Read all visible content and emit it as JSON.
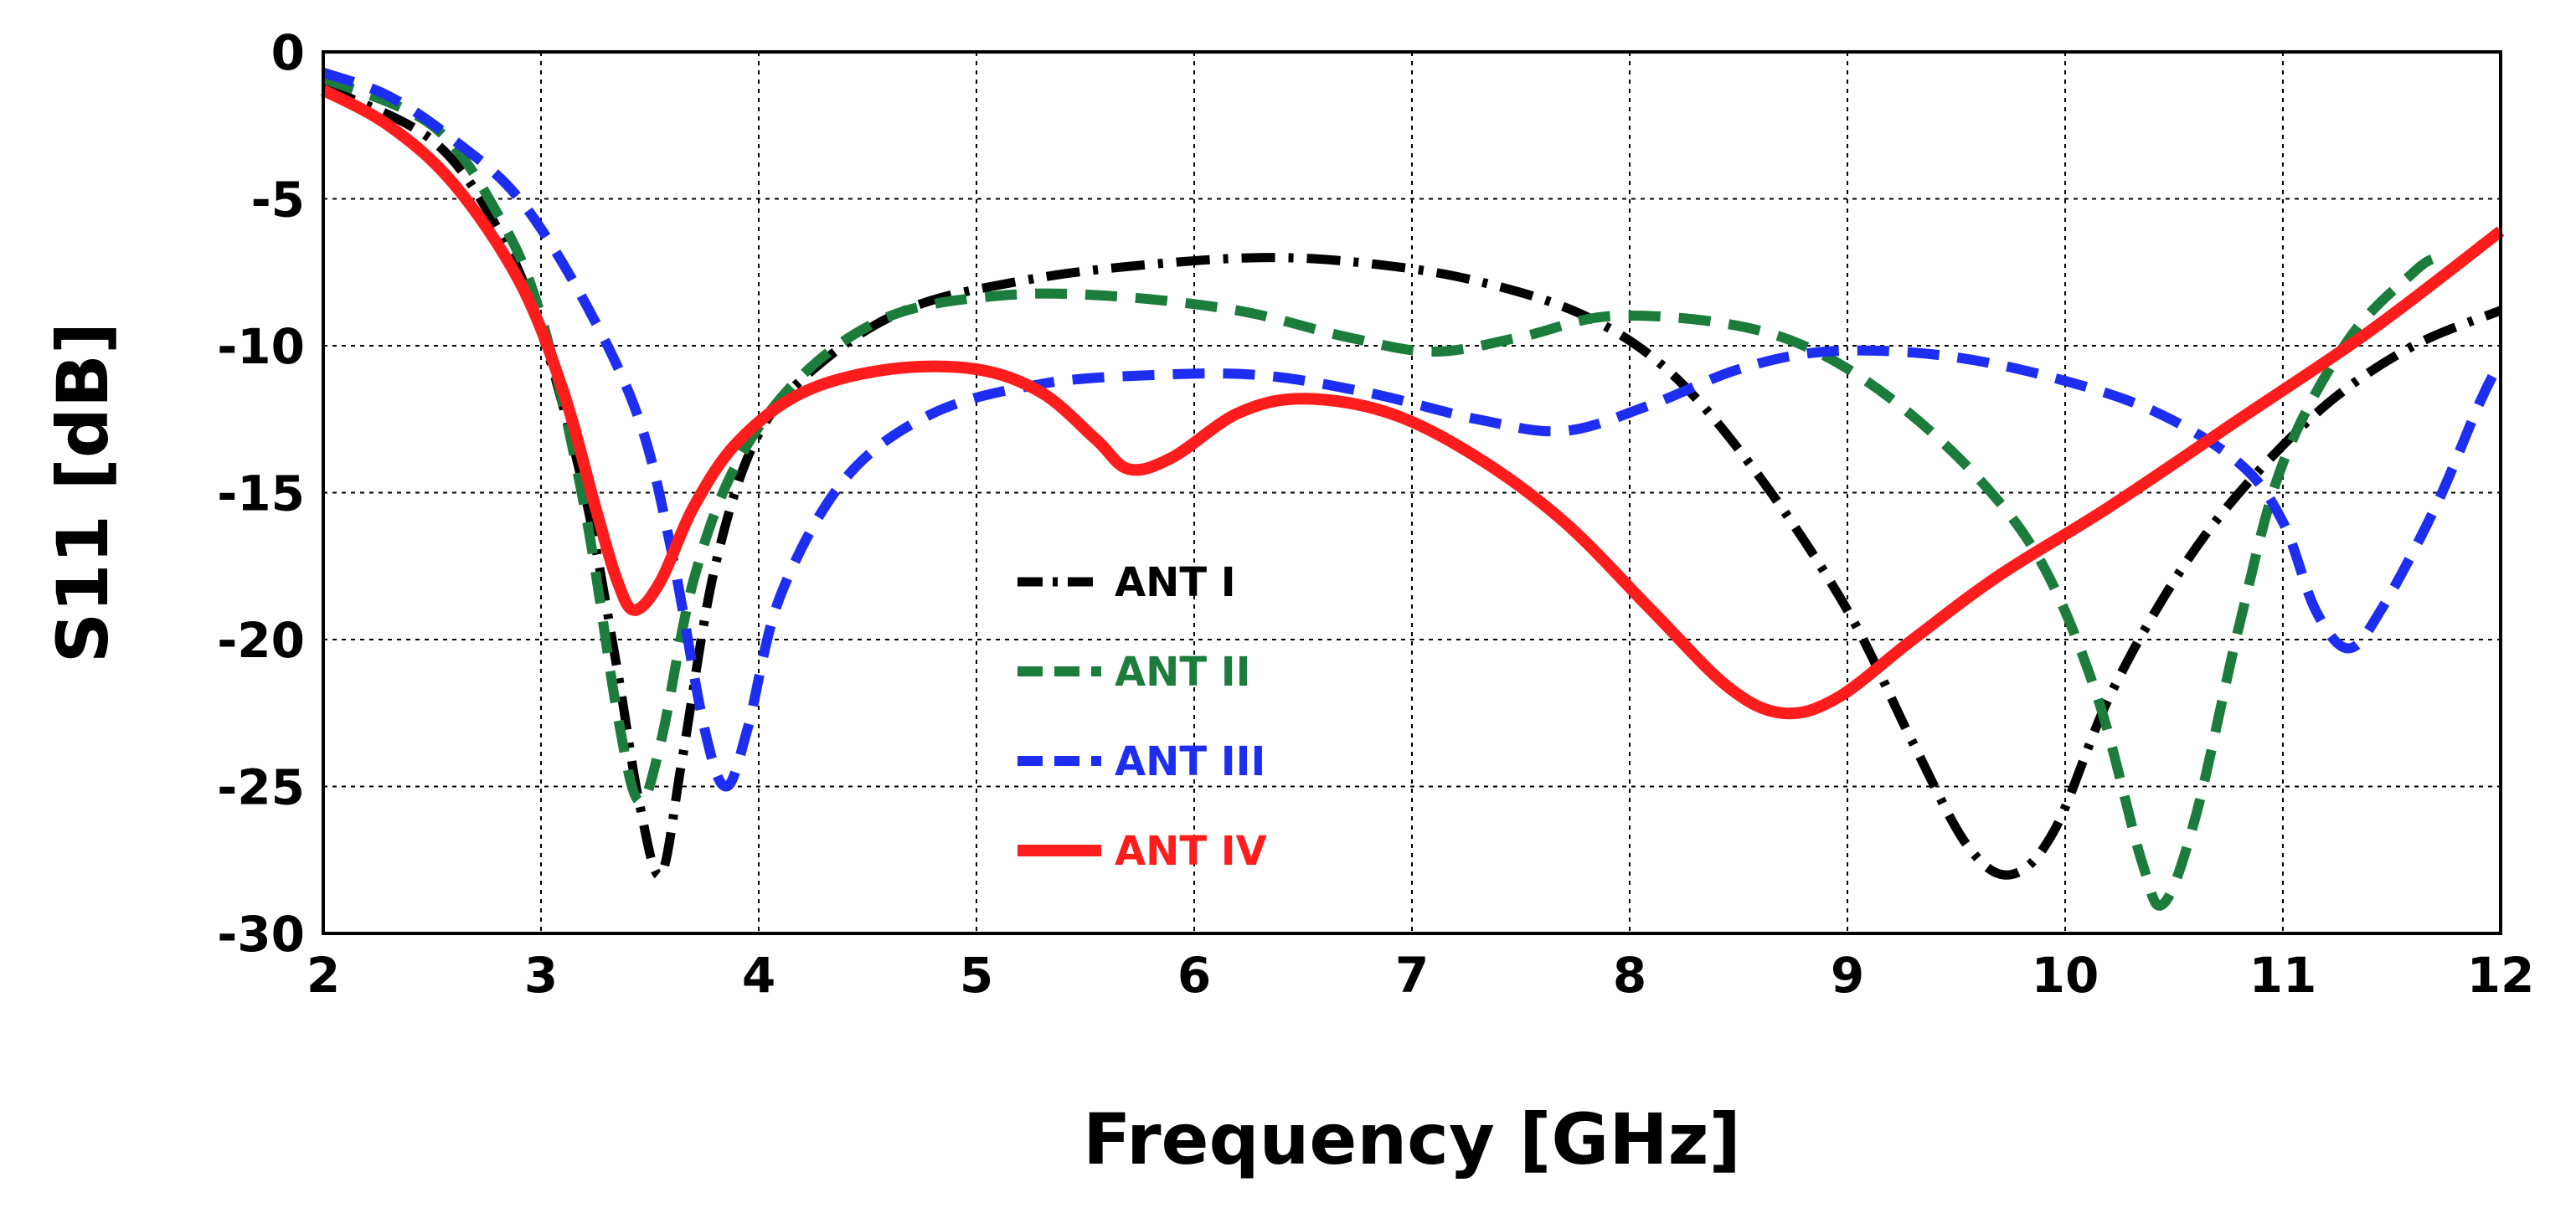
{
  "chart_data": {
    "type": "line",
    "title": "",
    "xlabel": "Frequency [GHz]",
    "ylabel": "S11 [dB]",
    "xlim": [
      2,
      12
    ],
    "ylim": [
      -30,
      0
    ],
    "x_ticks": [
      "2",
      "3",
      "4",
      "5",
      "6",
      "7",
      "8",
      "9",
      "10",
      "11",
      "12"
    ],
    "y_ticks": [
      "0",
      "-5",
      "-10",
      "-15",
      "-20",
      "-25",
      "-30"
    ],
    "grid": true,
    "legend_position": "center",
    "series": [
      {
        "name": "ANT I",
        "color": "#000000",
        "dash": "dash-dot",
        "points": [
          [
            2.0,
            -1.2
          ],
          [
            2.5,
            -3.0
          ],
          [
            2.8,
            -6.0
          ],
          [
            3.0,
            -9.5
          ],
          [
            3.2,
            -15.0
          ],
          [
            3.35,
            -21.0
          ],
          [
            3.45,
            -25.5
          ],
          [
            3.55,
            -28.0
          ],
          [
            3.65,
            -24.0
          ],
          [
            3.8,
            -17.5
          ],
          [
            4.0,
            -13.0
          ],
          [
            4.3,
            -10.5
          ],
          [
            4.7,
            -8.7
          ],
          [
            5.2,
            -7.8
          ],
          [
            5.7,
            -7.3
          ],
          [
            6.3,
            -7.0
          ],
          [
            6.8,
            -7.2
          ],
          [
            7.3,
            -7.8
          ],
          [
            7.8,
            -9.0
          ],
          [
            8.2,
            -11.0
          ],
          [
            8.6,
            -14.5
          ],
          [
            9.0,
            -19.0
          ],
          [
            9.3,
            -23.5
          ],
          [
            9.55,
            -27.0
          ],
          [
            9.75,
            -28.0
          ],
          [
            9.95,
            -26.5
          ],
          [
            10.2,
            -22.0
          ],
          [
            10.5,
            -18.0
          ],
          [
            10.8,
            -15.0
          ],
          [
            11.2,
            -12.0
          ],
          [
            11.6,
            -10.0
          ],
          [
            12.0,
            -8.8
          ]
        ]
      },
      {
        "name": "ANT II",
        "color": "#1c7c3c",
        "dash": "dashed",
        "points": [
          [
            2.0,
            -0.9
          ],
          [
            2.5,
            -2.5
          ],
          [
            2.8,
            -5.5
          ],
          [
            3.0,
            -9.0
          ],
          [
            3.2,
            -15.5
          ],
          [
            3.35,
            -22.5
          ],
          [
            3.45,
            -25.5
          ],
          [
            3.55,
            -23.5
          ],
          [
            3.7,
            -18.0
          ],
          [
            3.9,
            -14.0
          ],
          [
            4.2,
            -11.0
          ],
          [
            4.6,
            -9.0
          ],
          [
            5.1,
            -8.3
          ],
          [
            5.6,
            -8.3
          ],
          [
            6.2,
            -8.8
          ],
          [
            6.7,
            -9.7
          ],
          [
            7.1,
            -10.2
          ],
          [
            7.5,
            -9.7
          ],
          [
            7.9,
            -9.0
          ],
          [
            8.4,
            -9.2
          ],
          [
            8.8,
            -10.0
          ],
          [
            9.2,
            -11.8
          ],
          [
            9.6,
            -14.5
          ],
          [
            9.9,
            -17.5
          ],
          [
            10.15,
            -22.0
          ],
          [
            10.35,
            -27.5
          ],
          [
            10.45,
            -29.0
          ],
          [
            10.6,
            -26.0
          ],
          [
            10.8,
            -19.5
          ],
          [
            11.0,
            -14.0
          ],
          [
            11.3,
            -9.8
          ],
          [
            11.6,
            -7.5
          ],
          [
            11.7,
            -7.0
          ]
        ]
      },
      {
        "name": "ANT III",
        "color": "#1e2ef0",
        "dash": "dashed",
        "points": [
          [
            2.0,
            -0.7
          ],
          [
            2.3,
            -1.5
          ],
          [
            2.6,
            -3.0
          ],
          [
            2.9,
            -5.0
          ],
          [
            3.2,
            -8.5
          ],
          [
            3.45,
            -12.5
          ],
          [
            3.6,
            -17.0
          ],
          [
            3.75,
            -23.0
          ],
          [
            3.85,
            -25.0
          ],
          [
            3.95,
            -23.0
          ],
          [
            4.1,
            -18.5
          ],
          [
            4.4,
            -14.5
          ],
          [
            4.8,
            -12.3
          ],
          [
            5.3,
            -11.3
          ],
          [
            5.8,
            -11.0
          ],
          [
            6.3,
            -11.0
          ],
          [
            6.8,
            -11.6
          ],
          [
            7.3,
            -12.5
          ],
          [
            7.7,
            -12.9
          ],
          [
            8.1,
            -12.0
          ],
          [
            8.5,
            -10.8
          ],
          [
            8.9,
            -10.2
          ],
          [
            9.4,
            -10.3
          ],
          [
            9.9,
            -11.0
          ],
          [
            10.4,
            -12.2
          ],
          [
            10.8,
            -14.0
          ],
          [
            11.0,
            -16.0
          ],
          [
            11.15,
            -19.0
          ],
          [
            11.3,
            -20.3
          ],
          [
            11.45,
            -19.0
          ],
          [
            11.7,
            -15.5
          ],
          [
            11.9,
            -12.0
          ],
          [
            12.0,
            -10.5
          ]
        ]
      },
      {
        "name": "ANT IV",
        "color": "#ff1c1c",
        "dash": "solid",
        "points": [
          [
            2.0,
            -1.3
          ],
          [
            2.3,
            -2.5
          ],
          [
            2.6,
            -4.5
          ],
          [
            2.9,
            -7.8
          ],
          [
            3.1,
            -11.5
          ],
          [
            3.25,
            -15.5
          ],
          [
            3.35,
            -18.0
          ],
          [
            3.43,
            -19.0
          ],
          [
            3.55,
            -18.0
          ],
          [
            3.7,
            -15.5
          ],
          [
            3.9,
            -13.3
          ],
          [
            4.2,
            -11.6
          ],
          [
            4.6,
            -10.8
          ],
          [
            5.0,
            -10.8
          ],
          [
            5.3,
            -11.6
          ],
          [
            5.55,
            -13.2
          ],
          [
            5.7,
            -14.2
          ],
          [
            5.9,
            -13.8
          ],
          [
            6.2,
            -12.3
          ],
          [
            6.5,
            -11.8
          ],
          [
            6.9,
            -12.3
          ],
          [
            7.3,
            -13.8
          ],
          [
            7.7,
            -16.0
          ],
          [
            8.1,
            -19.0
          ],
          [
            8.45,
            -21.6
          ],
          [
            8.7,
            -22.5
          ],
          [
            8.95,
            -22.0
          ],
          [
            9.3,
            -20.0
          ],
          [
            9.7,
            -17.8
          ],
          [
            10.2,
            -15.5
          ],
          [
            10.8,
            -12.5
          ],
          [
            11.4,
            -9.5
          ],
          [
            12.0,
            -6.1
          ]
        ]
      }
    ]
  }
}
